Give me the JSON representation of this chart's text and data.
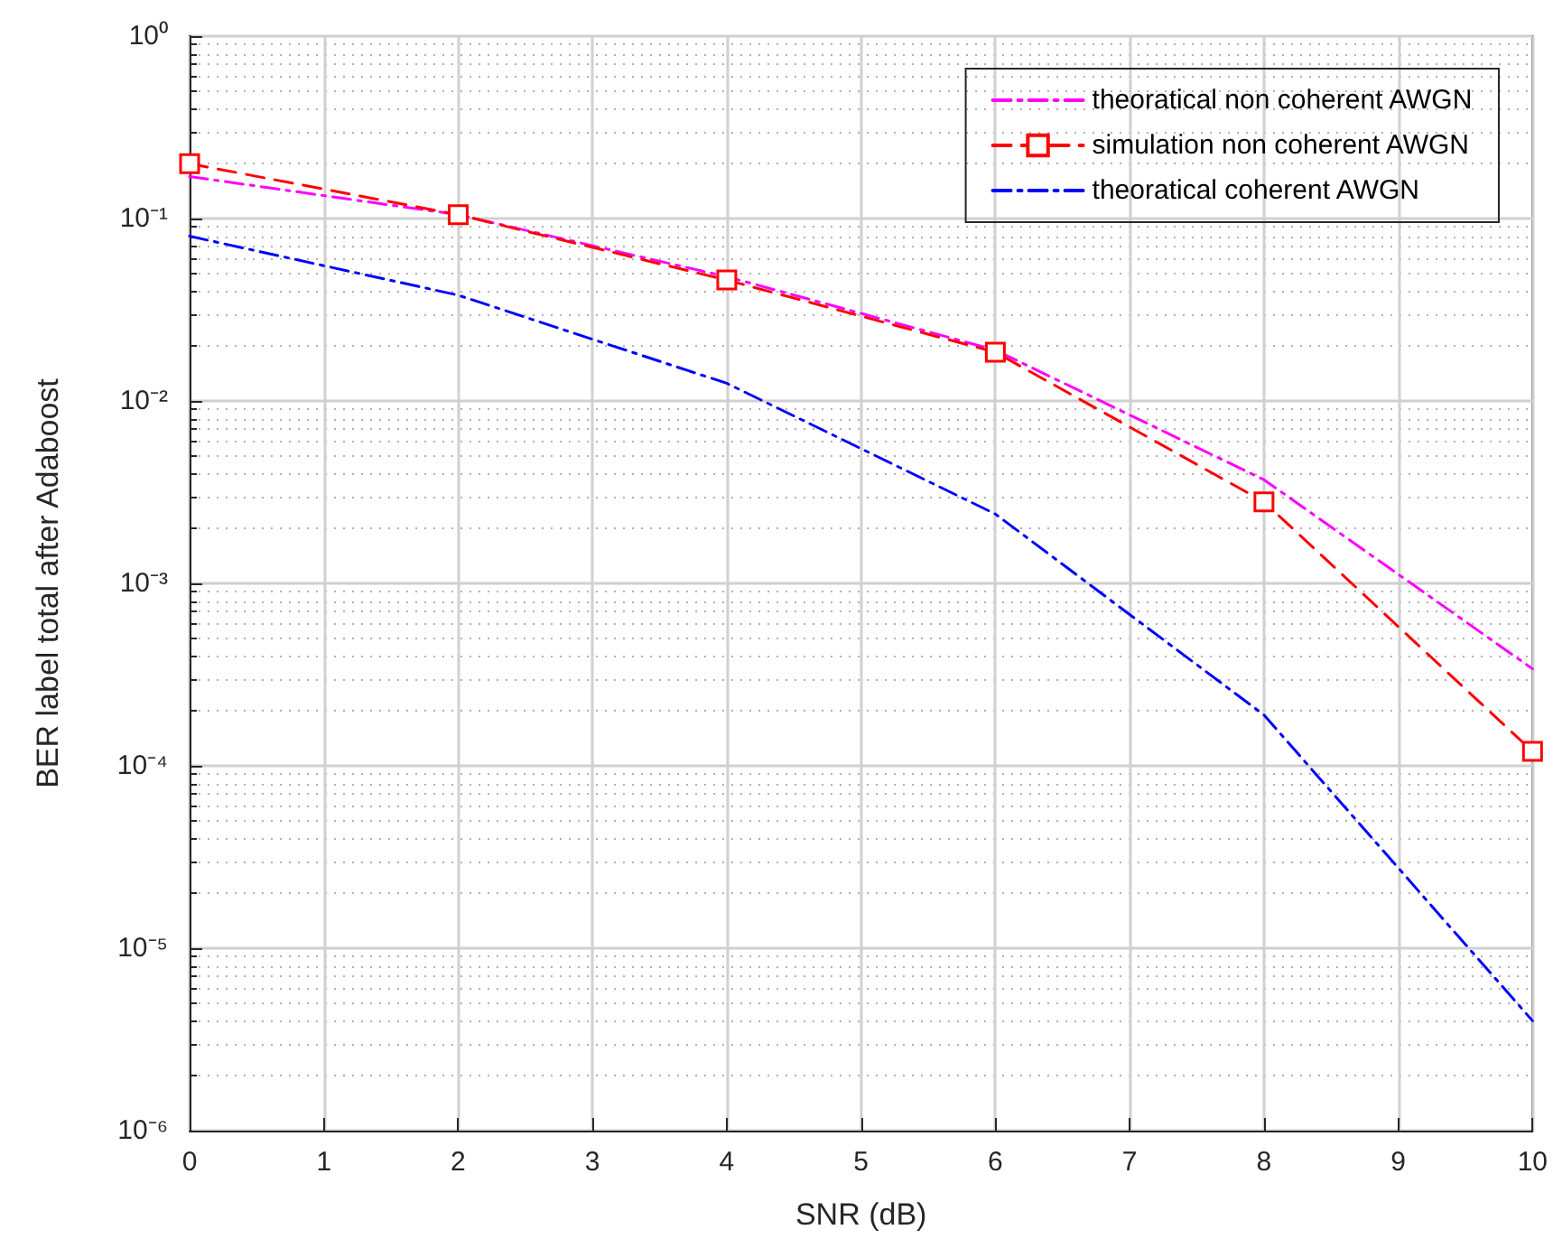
{
  "chart_data": {
    "type": "line",
    "xlabel": "SNR (dB)",
    "ylabel": "BER label total after Adaboost",
    "x": [
      0,
      2,
      4,
      6,
      8,
      10
    ],
    "log": "y",
    "grid": true,
    "legend": "top right",
    "xlim": [
      0,
      10
    ],
    "xticks": [
      0,
      1,
      2,
      3,
      4,
      5,
      6,
      7,
      8,
      9,
      10
    ],
    "ylim": [
      1e-06,
      1
    ],
    "yticks": [
      {
        "value": 1e-06,
        "label": "10⁻⁶"
      },
      {
        "value": 1e-05,
        "label": "10⁻⁵"
      },
      {
        "value": 0.0001,
        "label": "10⁻⁴"
      },
      {
        "value": 0.001,
        "label": "10⁻³"
      },
      {
        "value": 0.01,
        "label": "10⁻²"
      },
      {
        "value": 0.1,
        "label": "10⁻¹"
      },
      {
        "value": 1,
        "label": "10⁰"
      }
    ],
    "series": [
      {
        "name": "theoratical non coherent AWGN",
        "color": "#ff00ff",
        "line_style": "dashdot",
        "marker": "none",
        "values": [
          0.17,
          0.105,
          0.048,
          0.019,
          0.0037,
          0.00034
        ]
      },
      {
        "name": "simulation non coherent AWGN",
        "color": "#ff0000",
        "line_style": "dashed",
        "marker": "square",
        "values": [
          0.2,
          0.105,
          0.046,
          0.0185,
          0.0028,
          0.00012
        ]
      },
      {
        "name": "theoratical coherent AWGN",
        "color": "#0000ff",
        "line_style": "dashdot",
        "marker": "none",
        "values": [
          0.08,
          0.038,
          0.0125,
          0.0024,
          0.00019,
          4e-06
        ]
      }
    ]
  }
}
